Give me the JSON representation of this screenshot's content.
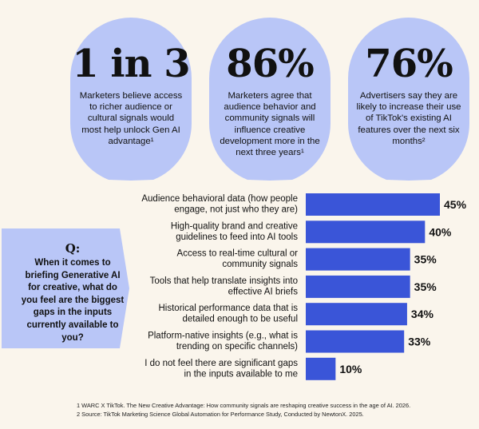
{
  "stats": [
    {
      "big": "1 in 3",
      "desc": "Marketers believe access to richer audience or cultural signals would most help unlock Gen AI advantage¹"
    },
    {
      "big": "86%",
      "desc": "Marketers agree that audience behavior and community signals will influence creative development more in the next three years¹"
    },
    {
      "big": "76%",
      "desc": "Advertisers say they are likely to increase their use of TikTok's existing AI features over the next six months²"
    }
  ],
  "question": {
    "label": "Q:",
    "text": "When it comes to briefing Generative AI for creative, what do you feel are the biggest gaps in the inputs currently available to you?"
  },
  "chart_data": {
    "type": "bar",
    "orientation": "horizontal",
    "categories": [
      "Audience behavioral data (how people engage, not just who they are)",
      "High-quality brand and creative guidelines to feed into AI tools",
      "Access to real-time cultural or community signals",
      "Tools that help translate insights into effective AI briefs",
      "Historical performance data that is detailed enough to be useful",
      "Platform-native insights (e.g., what is trending on specific channels)",
      "I do not feel there are significant gaps in the inputs available to me"
    ],
    "category_lines": [
      [
        "Audience behavioral data (how people",
        "engage, not just who they are)"
      ],
      [
        "High-quality brand and creative",
        "guidelines to feed into AI tools"
      ],
      [
        "Access to real-time cultural or",
        "community signals"
      ],
      [
        "Tools that help translate insights into",
        "effective AI briefs"
      ],
      [
        "Historical performance data that is",
        "detailed enough to be useful"
      ],
      [
        "Platform-native insights (e.g., what is",
        "trending on specific channels)"
      ],
      [
        "I do not feel there are significant gaps",
        "in the inputs available to me"
      ]
    ],
    "values": [
      45,
      40,
      35,
      35,
      34,
      33,
      10
    ],
    "value_labels": [
      "45%",
      "40%",
      "35%",
      "35%",
      "34%",
      "33%",
      "10%"
    ],
    "xlim": [
      0,
      45
    ],
    "grid": false,
    "bar_color": "#3a55d8"
  },
  "footnotes": [
    "1  WARC X TikTok. The New Creative Advantage: How community signals are reshaping creative success in the age of AI. 2026.",
    "2  Source: TikTok Marketing Science Global Automation for Performance Study, Conducted by NewtonX. 2025."
  ],
  "colors": {
    "background": "#faf5ec",
    "stat_bubble": "#b9c6f7",
    "question_box": "#b9c6f7",
    "bar": "#3a55d8",
    "text": "#111111"
  }
}
